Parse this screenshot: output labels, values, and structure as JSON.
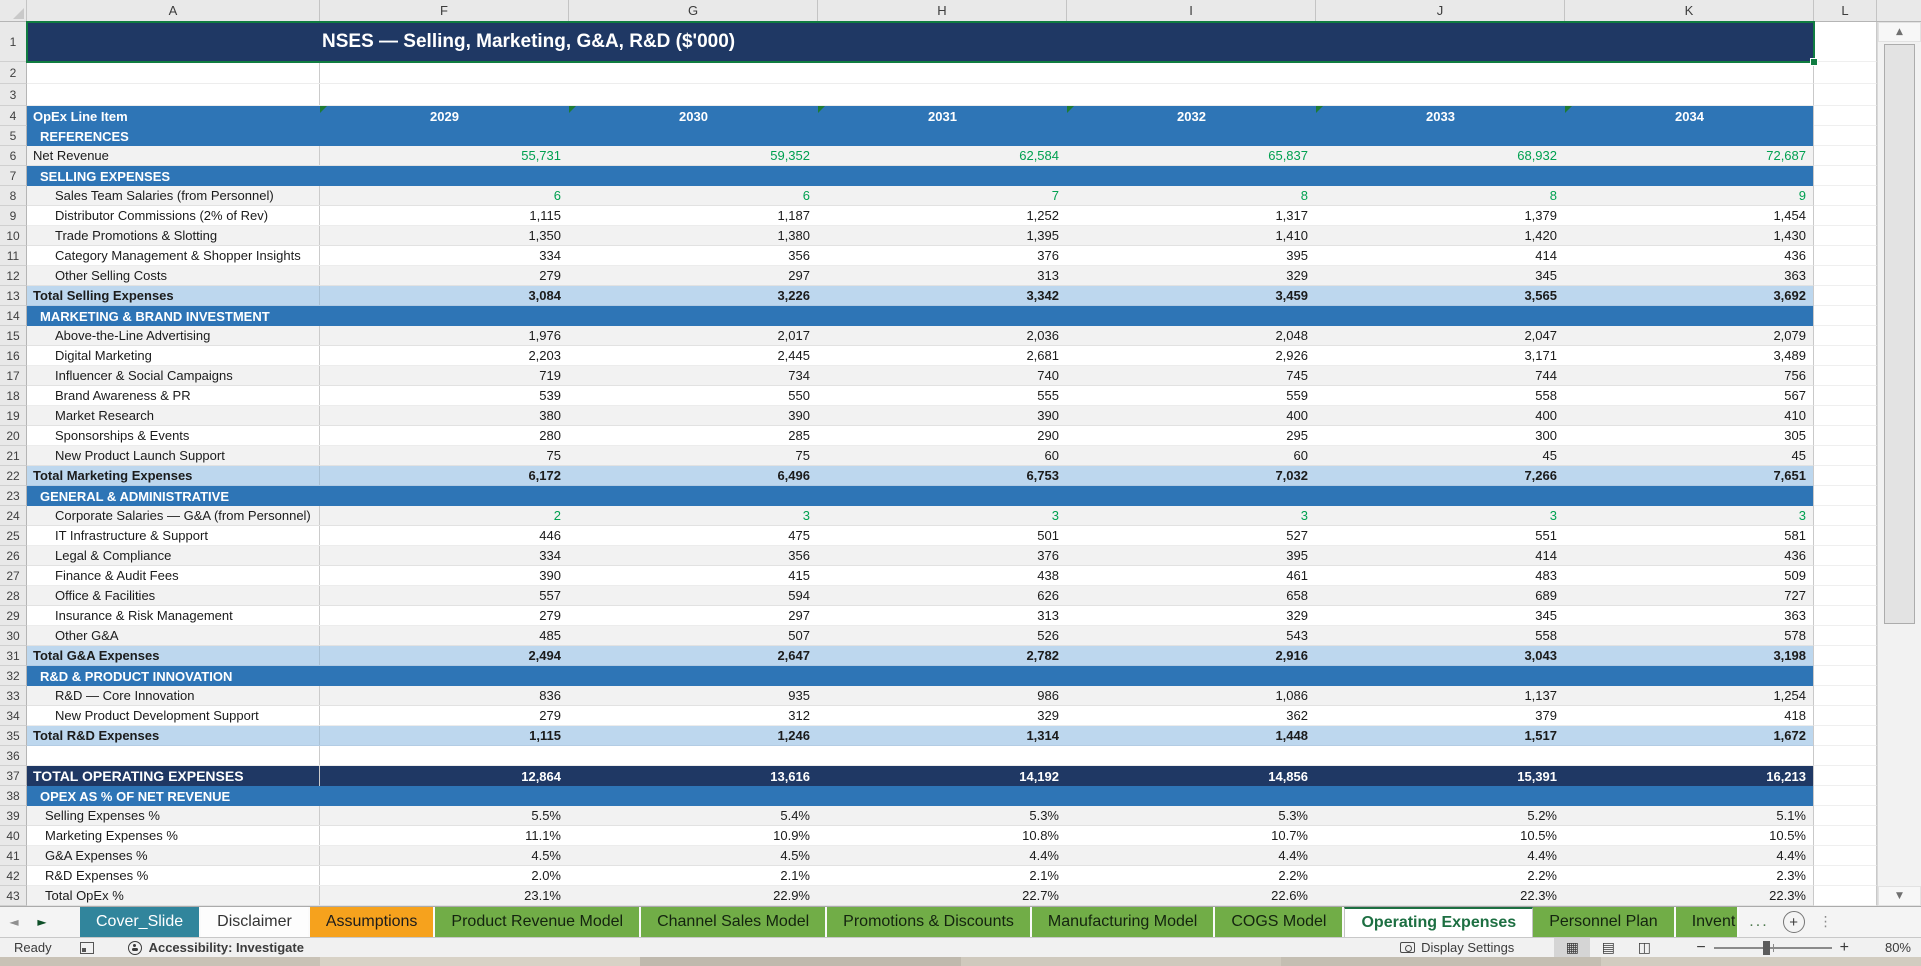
{
  "sheet": {
    "title_visible": "NSES — Selling, Marketing, G&A, R&D ($'000)",
    "columns": [
      "A",
      "F",
      "G",
      "H",
      "I",
      "J",
      "K",
      "L"
    ],
    "row_count": 43,
    "header_row": {
      "label": "OpEx Line Item",
      "years": [
        "2029",
        "2030",
        "2031",
        "2032",
        "2033",
        "2034"
      ],
      "year_error_indicators": [
        true,
        true,
        true,
        true,
        true,
        true
      ]
    },
    "rows": [
      {
        "n": 5,
        "kind": "section",
        "label": "REFERENCES"
      },
      {
        "n": 6,
        "kind": "item",
        "label": "Net Revenue",
        "indent": "none",
        "band": "g",
        "green": true,
        "values": [
          "55,731",
          "59,352",
          "62,584",
          "65,837",
          "68,932",
          "72,687"
        ]
      },
      {
        "n": 7,
        "kind": "section",
        "label": "SELLING EXPENSES"
      },
      {
        "n": 8,
        "kind": "item",
        "label": "Sales Team Salaries (from Personnel)",
        "indent": "item",
        "band": "g",
        "green": true,
        "values": [
          "6",
          "6",
          "7",
          "8",
          "8",
          "9"
        ]
      },
      {
        "n": 9,
        "kind": "item",
        "label": "Distributor Commissions (2% of Rev)",
        "indent": "item",
        "band": "w",
        "values": [
          "1,115",
          "1,187",
          "1,252",
          "1,317",
          "1,379",
          "1,454"
        ]
      },
      {
        "n": 10,
        "kind": "item",
        "label": "Trade Promotions & Slotting",
        "indent": "item",
        "band": "g",
        "values": [
          "1,350",
          "1,380",
          "1,395",
          "1,410",
          "1,420",
          "1,430"
        ]
      },
      {
        "n": 11,
        "kind": "item",
        "label": "Category Management & Shopper Insights",
        "indent": "item",
        "band": "w",
        "values": [
          "334",
          "356",
          "376",
          "395",
          "414",
          "436"
        ]
      },
      {
        "n": 12,
        "kind": "item",
        "label": "Other Selling Costs",
        "indent": "item",
        "band": "g",
        "values": [
          "279",
          "297",
          "313",
          "329",
          "345",
          "363"
        ]
      },
      {
        "n": 13,
        "kind": "total",
        "label": "Total Selling Expenses",
        "values": [
          "3,084",
          "3,226",
          "3,342",
          "3,459",
          "3,565",
          "3,692"
        ]
      },
      {
        "n": 14,
        "kind": "section",
        "label": "MARKETING & BRAND INVESTMENT"
      },
      {
        "n": 15,
        "kind": "item",
        "label": "Above-the-Line Advertising",
        "indent": "item",
        "band": "g",
        "values": [
          "1,976",
          "2,017",
          "2,036",
          "2,048",
          "2,047",
          "2,079"
        ]
      },
      {
        "n": 16,
        "kind": "item",
        "label": "Digital Marketing",
        "indent": "item",
        "band": "w",
        "values": [
          "2,203",
          "2,445",
          "2,681",
          "2,926",
          "3,171",
          "3,489"
        ]
      },
      {
        "n": 17,
        "kind": "item",
        "label": "Influencer & Social Campaigns",
        "indent": "item",
        "band": "g",
        "values": [
          "719",
          "734",
          "740",
          "745",
          "744",
          "756"
        ]
      },
      {
        "n": 18,
        "kind": "item",
        "label": "Brand Awareness & PR",
        "indent": "item",
        "band": "w",
        "values": [
          "539",
          "550",
          "555",
          "559",
          "558",
          "567"
        ]
      },
      {
        "n": 19,
        "kind": "item",
        "label": "Market Research",
        "indent": "item",
        "band": "g",
        "values": [
          "380",
          "390",
          "390",
          "400",
          "400",
          "410"
        ]
      },
      {
        "n": 20,
        "kind": "item",
        "label": "Sponsorships & Events",
        "indent": "item",
        "band": "w",
        "values": [
          "280",
          "285",
          "290",
          "295",
          "300",
          "305"
        ]
      },
      {
        "n": 21,
        "kind": "item",
        "label": "New Product Launch Support",
        "indent": "item",
        "band": "g",
        "values": [
          "75",
          "75",
          "60",
          "60",
          "45",
          "45"
        ]
      },
      {
        "n": 22,
        "kind": "total",
        "label": "Total Marketing Expenses",
        "values": [
          "6,172",
          "6,496",
          "6,753",
          "7,032",
          "7,266",
          "7,651"
        ]
      },
      {
        "n": 23,
        "kind": "section",
        "label": "GENERAL & ADMINISTRATIVE"
      },
      {
        "n": 24,
        "kind": "item",
        "label": "Corporate Salaries — G&A (from Personnel)",
        "indent": "item",
        "band": "g",
        "green": true,
        "values": [
          "2",
          "3",
          "3",
          "3",
          "3",
          "3"
        ]
      },
      {
        "n": 25,
        "kind": "item",
        "label": "IT Infrastructure & Support",
        "indent": "item",
        "band": "w",
        "values": [
          "446",
          "475",
          "501",
          "527",
          "551",
          "581"
        ]
      },
      {
        "n": 26,
        "kind": "item",
        "label": "Legal & Compliance",
        "indent": "item",
        "band": "g",
        "values": [
          "334",
          "356",
          "376",
          "395",
          "414",
          "436"
        ]
      },
      {
        "n": 27,
        "kind": "item",
        "label": "Finance & Audit Fees",
        "indent": "item",
        "band": "w",
        "values": [
          "390",
          "415",
          "438",
          "461",
          "483",
          "509"
        ]
      },
      {
        "n": 28,
        "kind": "item",
        "label": "Office & Facilities",
        "indent": "item",
        "band": "g",
        "values": [
          "557",
          "594",
          "626",
          "658",
          "689",
          "727"
        ]
      },
      {
        "n": 29,
        "kind": "item",
        "label": "Insurance & Risk Management",
        "indent": "item",
        "band": "w",
        "values": [
          "279",
          "297",
          "313",
          "329",
          "345",
          "363"
        ]
      },
      {
        "n": 30,
        "kind": "item",
        "label": "Other G&A",
        "indent": "item",
        "band": "g",
        "values": [
          "485",
          "507",
          "526",
          "543",
          "558",
          "578"
        ]
      },
      {
        "n": 31,
        "kind": "total",
        "label": "Total G&A Expenses",
        "values": [
          "2,494",
          "2,647",
          "2,782",
          "2,916",
          "3,043",
          "3,198"
        ]
      },
      {
        "n": 32,
        "kind": "section",
        "label": "R&D & PRODUCT INNOVATION"
      },
      {
        "n": 33,
        "kind": "item",
        "label": "R&D — Core Innovation",
        "indent": "item",
        "band": "g",
        "values": [
          "836",
          "935",
          "986",
          "1,086",
          "1,137",
          "1,254"
        ]
      },
      {
        "n": 34,
        "kind": "item",
        "label": "New Product Development Support",
        "indent": "item",
        "band": "w",
        "values": [
          "279",
          "312",
          "329",
          "362",
          "379",
          "418"
        ]
      },
      {
        "n": 35,
        "kind": "total",
        "label": "Total R&D Expenses",
        "values": [
          "1,115",
          "1,246",
          "1,314",
          "1,448",
          "1,517",
          "1,672"
        ]
      },
      {
        "n": 36,
        "kind": "blank"
      },
      {
        "n": 37,
        "kind": "grand",
        "label": "TOTAL OPERATING EXPENSES",
        "values": [
          "12,864",
          "13,616",
          "14,192",
          "14,856",
          "15,391",
          "16,213"
        ]
      },
      {
        "n": 38,
        "kind": "section",
        "label": "OPEX AS % OF NET REVENUE"
      },
      {
        "n": 39,
        "kind": "item",
        "label": "Selling Expenses %",
        "indent": "pct",
        "band": "g",
        "values": [
          "5.5%",
          "5.4%",
          "5.3%",
          "5.3%",
          "5.2%",
          "5.1%"
        ]
      },
      {
        "n": 40,
        "kind": "item",
        "label": "Marketing Expenses %",
        "indent": "pct",
        "band": "w",
        "values": [
          "11.1%",
          "10.9%",
          "10.8%",
          "10.7%",
          "10.5%",
          "10.5%"
        ]
      },
      {
        "n": 41,
        "kind": "item",
        "label": "G&A Expenses %",
        "indent": "pct",
        "band": "g",
        "values": [
          "4.5%",
          "4.5%",
          "4.4%",
          "4.4%",
          "4.4%",
          "4.4%"
        ]
      },
      {
        "n": 42,
        "kind": "item",
        "label": "R&D Expenses %",
        "indent": "pct",
        "band": "w",
        "values": [
          "2.0%",
          "2.1%",
          "2.1%",
          "2.2%",
          "2.2%",
          "2.3%"
        ]
      },
      {
        "n": 43,
        "kind": "item",
        "label": "Total OpEx %",
        "indent": "pct",
        "band": "g",
        "values": [
          "23.1%",
          "22.9%",
          "22.7%",
          "22.6%",
          "22.3%",
          "22.3%"
        ]
      }
    ]
  },
  "tabs": {
    "nav_left": "◄",
    "nav_right": "►",
    "items": [
      {
        "label": "Cover_Slide",
        "style": "teal"
      },
      {
        "label": "Disclaimer",
        "style": "plain"
      },
      {
        "label": "Assumptions",
        "style": "orange"
      },
      {
        "label": "Product Revenue Model",
        "style": "green"
      },
      {
        "label": "Channel Sales Model",
        "style": "green"
      },
      {
        "label": "Promotions & Discounts",
        "style": "green"
      },
      {
        "label": "Manufacturing Model",
        "style": "green"
      },
      {
        "label": "COGS Model",
        "style": "green"
      },
      {
        "label": "Operating Expenses",
        "style": "active"
      },
      {
        "label": "Personnel Plan",
        "style": "green"
      },
      {
        "label": "Invent",
        "style": "green",
        "truncated": true
      }
    ],
    "overflow": "...",
    "add": "+",
    "kebab": "⋮"
  },
  "scrollbar": {
    "up": "▲",
    "down": "▼"
  },
  "status_bar": {
    "ready": "Ready",
    "accessibility": "Accessibility: Investigate",
    "display_settings": "Display Settings",
    "zoom_minus": "−",
    "zoom_plus": "+",
    "zoom_level": "80%",
    "view_icons": [
      "▦",
      "▤",
      "◫"
    ]
  },
  "colors": {
    "title_navy": "#1F3864",
    "section_blue": "#2E75B6",
    "total_fill": "#BDD7EE",
    "green_value": "#00A050",
    "selection_green": "#107C41",
    "tab_teal": "#31859C",
    "tab_orange": "#F6A21D",
    "tab_green": "#71AD47",
    "active_tab_text": "#1D6F42"
  }
}
